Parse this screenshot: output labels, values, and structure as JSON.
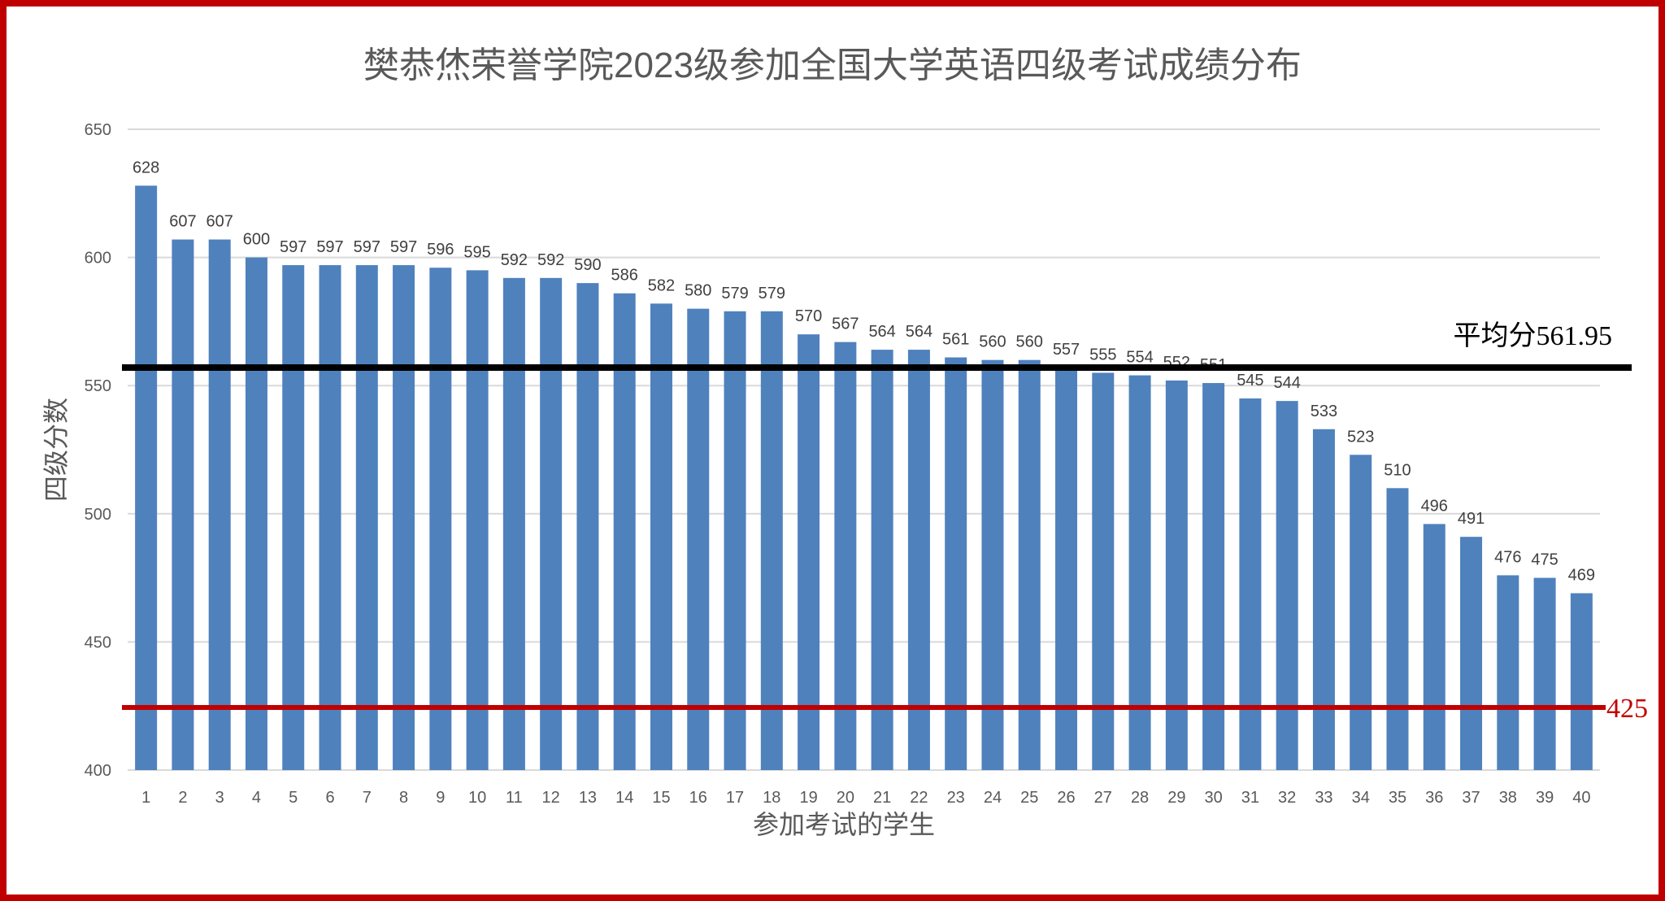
{
  "chart_data": {
    "type": "bar",
    "title": "樊恭烋荣誉学院2023级参加全国大学英语四级考试成绩分布",
    "xlabel": "参加考试的学生",
    "ylabel": "四级分数",
    "ylim": [
      400,
      650
    ],
    "yticks": [
      400,
      450,
      500,
      550,
      600,
      650
    ],
    "grid": true,
    "categories": [
      "1",
      "2",
      "3",
      "4",
      "5",
      "6",
      "7",
      "8",
      "9",
      "10",
      "11",
      "12",
      "13",
      "14",
      "15",
      "16",
      "17",
      "18",
      "19",
      "20",
      "21",
      "22",
      "23",
      "24",
      "25",
      "26",
      "27",
      "28",
      "29",
      "30",
      "31",
      "32",
      "33",
      "34",
      "35",
      "36",
      "37",
      "38",
      "39",
      "40"
    ],
    "values": [
      628,
      607,
      607,
      600,
      597,
      597,
      597,
      597,
      596,
      595,
      592,
      592,
      590,
      586,
      582,
      580,
      579,
      579,
      570,
      567,
      564,
      564,
      561,
      560,
      560,
      557,
      555,
      554,
      552,
      551,
      545,
      544,
      533,
      523,
      510,
      496,
      491,
      476,
      475,
      469
    ],
    "bar_color": "#4f81bd",
    "reference_lines": [
      {
        "label": "平均分561.95",
        "value": 561.95,
        "color": "#000000"
      },
      {
        "label": "425",
        "value": 425,
        "color": "#c00000"
      }
    ],
    "frame_color": "#c00000"
  }
}
